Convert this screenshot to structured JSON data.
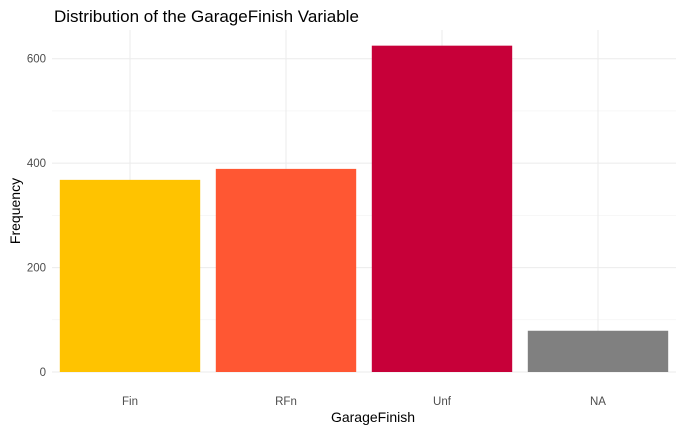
{
  "chart_data": {
    "type": "bar",
    "title": "Distribution of the GarageFinish Variable",
    "xlabel": "GarageFinish",
    "ylabel": "Frequency",
    "categories": [
      "Fin",
      "RFn",
      "Unf",
      "NA"
    ],
    "values": [
      368,
      389,
      625,
      79
    ],
    "colors": [
      "#FFC300",
      "#FF5733",
      "#C70039",
      "#808080"
    ],
    "ylim": [
      0,
      655
    ],
    "yticks": [
      0,
      200,
      400,
      600
    ],
    "grid": true,
    "legend": "none"
  }
}
